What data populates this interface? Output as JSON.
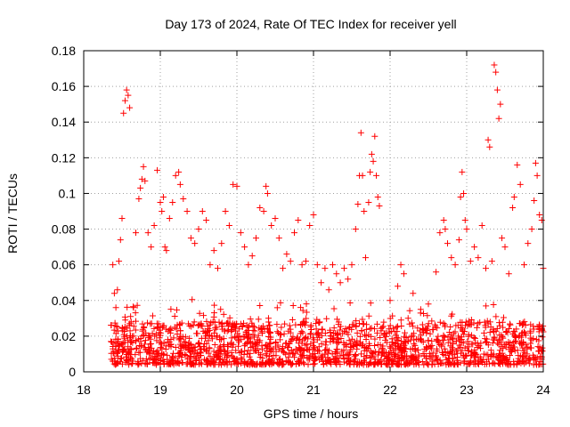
{
  "chart_data": {
    "type": "scatter",
    "title": "Day 173 of 2024, Rate Of TEC Index for receiver yell",
    "xlabel": "GPS time / hours",
    "ylabel": "ROTI / TECUs",
    "xlim": [
      18,
      24
    ],
    "ylim": [
      0,
      0.18
    ],
    "xticks": [
      "18",
      "19",
      "20",
      "21",
      "22",
      "23",
      "24"
    ],
    "yticks": [
      "0",
      "0.02",
      "0.04",
      "0.06",
      "0.08",
      "0.1",
      "0.12",
      "0.14",
      "0.16",
      "0.18"
    ],
    "grid": true,
    "marker": "plus",
    "series_color": "#ff0000",
    "series": [
      {
        "name": "ROTI",
        "note": "dense band of points 0.004-0.03 TECU across 18.35-24 h; representative sample",
        "points": [
          [
            18.38,
            0.06
          ],
          [
            18.4,
            0.044
          ],
          [
            18.42,
            0.036
          ],
          [
            18.44,
            0.046
          ],
          [
            18.46,
            0.062
          ],
          [
            18.48,
            0.074
          ],
          [
            18.5,
            0.086
          ],
          [
            18.52,
            0.145
          ],
          [
            18.54,
            0.152
          ],
          [
            18.56,
            0.158
          ],
          [
            18.58,
            0.155
          ],
          [
            18.6,
            0.148
          ],
          [
            18.62,
            0.028
          ],
          [
            18.65,
            0.036
          ],
          [
            18.68,
            0.078
          ],
          [
            18.72,
            0.097
          ],
          [
            18.74,
            0.103
          ],
          [
            18.76,
            0.108
          ],
          [
            18.78,
            0.115
          ],
          [
            18.8,
            0.107
          ],
          [
            18.84,
            0.078
          ],
          [
            18.88,
            0.07
          ],
          [
            18.92,
            0.082
          ],
          [
            18.96,
            0.113
          ],
          [
            19.0,
            0.095
          ],
          [
            19.02,
            0.09
          ],
          [
            19.04,
            0.098
          ],
          [
            19.06,
            0.07
          ],
          [
            19.08,
            0.068
          ],
          [
            19.12,
            0.086
          ],
          [
            19.16,
            0.095
          ],
          [
            19.2,
            0.11
          ],
          [
            19.24,
            0.112
          ],
          [
            19.26,
            0.105
          ],
          [
            19.3,
            0.097
          ],
          [
            19.35,
            0.09
          ],
          [
            19.4,
            0.075
          ],
          [
            19.45,
            0.072
          ],
          [
            19.5,
            0.08
          ],
          [
            19.55,
            0.09
          ],
          [
            19.6,
            0.085
          ],
          [
            19.65,
            0.06
          ],
          [
            19.7,
            0.068
          ],
          [
            19.75,
            0.058
          ],
          [
            19.8,
            0.072
          ],
          [
            19.85,
            0.09
          ],
          [
            19.9,
            0.082
          ],
          [
            19.95,
            0.105
          ],
          [
            20.0,
            0.104
          ],
          [
            20.05,
            0.078
          ],
          [
            20.1,
            0.07
          ],
          [
            20.15,
            0.06
          ],
          [
            20.2,
            0.065
          ],
          [
            20.25,
            0.075
          ],
          [
            20.3,
            0.092
          ],
          [
            20.35,
            0.09
          ],
          [
            20.38,
            0.104
          ],
          [
            20.4,
            0.1
          ],
          [
            20.45,
            0.082
          ],
          [
            20.5,
            0.086
          ],
          [
            20.55,
            0.075
          ],
          [
            20.6,
            0.058
          ],
          [
            20.65,
            0.066
          ],
          [
            20.7,
            0.062
          ],
          [
            20.75,
            0.078
          ],
          [
            20.8,
            0.085
          ],
          [
            20.85,
            0.06
          ],
          [
            20.9,
            0.062
          ],
          [
            20.95,
            0.082
          ],
          [
            21.0,
            0.088
          ],
          [
            21.05,
            0.06
          ],
          [
            21.1,
            0.05
          ],
          [
            21.15,
            0.058
          ],
          [
            21.2,
            0.046
          ],
          [
            21.25,
            0.06
          ],
          [
            21.3,
            0.055
          ],
          [
            21.35,
            0.05
          ],
          [
            21.4,
            0.058
          ],
          [
            21.45,
            0.052
          ],
          [
            21.5,
            0.06
          ],
          [
            21.55,
            0.08
          ],
          [
            21.58,
            0.094
          ],
          [
            21.6,
            0.11
          ],
          [
            21.62,
            0.134
          ],
          [
            21.64,
            0.11
          ],
          [
            21.66,
            0.09
          ],
          [
            21.68,
            0.064
          ],
          [
            21.72,
            0.095
          ],
          [
            21.74,
            0.112
          ],
          [
            21.76,
            0.122
          ],
          [
            21.78,
            0.118
          ],
          [
            21.8,
            0.132
          ],
          [
            21.82,
            0.11
          ],
          [
            21.84,
            0.098
          ],
          [
            21.86,
            0.093
          ],
          [
            22.0,
            0.04
          ],
          [
            22.1,
            0.048
          ],
          [
            22.14,
            0.06
          ],
          [
            22.18,
            0.055
          ],
          [
            22.3,
            0.044
          ],
          [
            22.4,
            0.035
          ],
          [
            22.5,
            0.038
          ],
          [
            22.6,
            0.056
          ],
          [
            22.65,
            0.078
          ],
          [
            22.7,
            0.085
          ],
          [
            22.72,
            0.08
          ],
          [
            22.75,
            0.072
          ],
          [
            22.8,
            0.064
          ],
          [
            22.85,
            0.06
          ],
          [
            22.9,
            0.074
          ],
          [
            22.92,
            0.098
          ],
          [
            22.94,
            0.112
          ],
          [
            22.96,
            0.1
          ],
          [
            22.98,
            0.085
          ],
          [
            23.0,
            0.08
          ],
          [
            23.05,
            0.062
          ],
          [
            23.1,
            0.07
          ],
          [
            23.15,
            0.064
          ],
          [
            23.2,
            0.082
          ],
          [
            23.25,
            0.058
          ],
          [
            23.28,
            0.13
          ],
          [
            23.3,
            0.126
          ],
          [
            23.33,
            0.062
          ],
          [
            23.36,
            0.172
          ],
          [
            23.38,
            0.168
          ],
          [
            23.4,
            0.158
          ],
          [
            23.42,
            0.142
          ],
          [
            23.44,
            0.15
          ],
          [
            23.46,
            0.075
          ],
          [
            23.5,
            0.07
          ],
          [
            23.55,
            0.055
          ],
          [
            23.6,
            0.092
          ],
          [
            23.62,
            0.098
          ],
          [
            23.66,
            0.116
          ],
          [
            23.7,
            0.105
          ],
          [
            23.75,
            0.06
          ],
          [
            23.8,
            0.072
          ],
          [
            23.85,
            0.08
          ],
          [
            23.88,
            0.096
          ],
          [
            23.9,
            0.117
          ],
          [
            23.92,
            0.11
          ],
          [
            23.95,
            0.088
          ],
          [
            23.98,
            0.085
          ],
          [
            24.0,
            0.058
          ]
        ]
      }
    ]
  }
}
